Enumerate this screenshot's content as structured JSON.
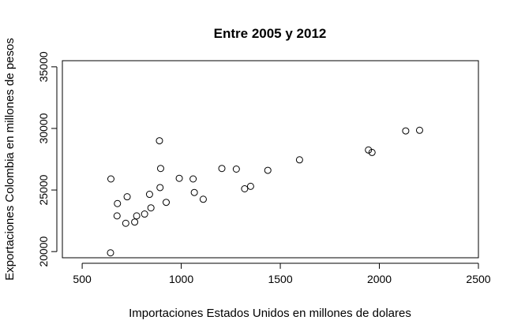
{
  "chart_data": {
    "type": "scatter",
    "title": "Entre 2005 y 2012",
    "xlabel": "Importaciones Estados Unidos en millones de dolares",
    "ylabel": "Exportaciones Colombia en millones de pesos",
    "xlim": [
      400,
      2500
    ],
    "ylim": [
      19500,
      35500
    ],
    "x_ticks": [
      500,
      1000,
      1500,
      2000,
      2500
    ],
    "y_ticks": [
      20000,
      25000,
      30000,
      35000
    ],
    "grid": false,
    "legend": "none",
    "marker": "open-circle",
    "x": [
      643,
      645,
      676,
      678,
      720,
      727,
      765,
      775,
      815,
      840,
      847,
      890,
      893,
      896,
      924,
      990,
      1060,
      1066,
      1111,
      1205,
      1278,
      1320,
      1350,
      1437,
      1597,
      1945,
      1963,
      2133,
      2203
    ],
    "y": [
      19900,
      25900,
      22900,
      23900,
      22300,
      24450,
      22400,
      22900,
      23050,
      24650,
      23550,
      29000,
      25200,
      26750,
      24000,
      25950,
      25900,
      24800,
      24250,
      26750,
      26700,
      25100,
      25300,
      26600,
      27450,
      28250,
      28050,
      29800,
      29850
    ]
  }
}
